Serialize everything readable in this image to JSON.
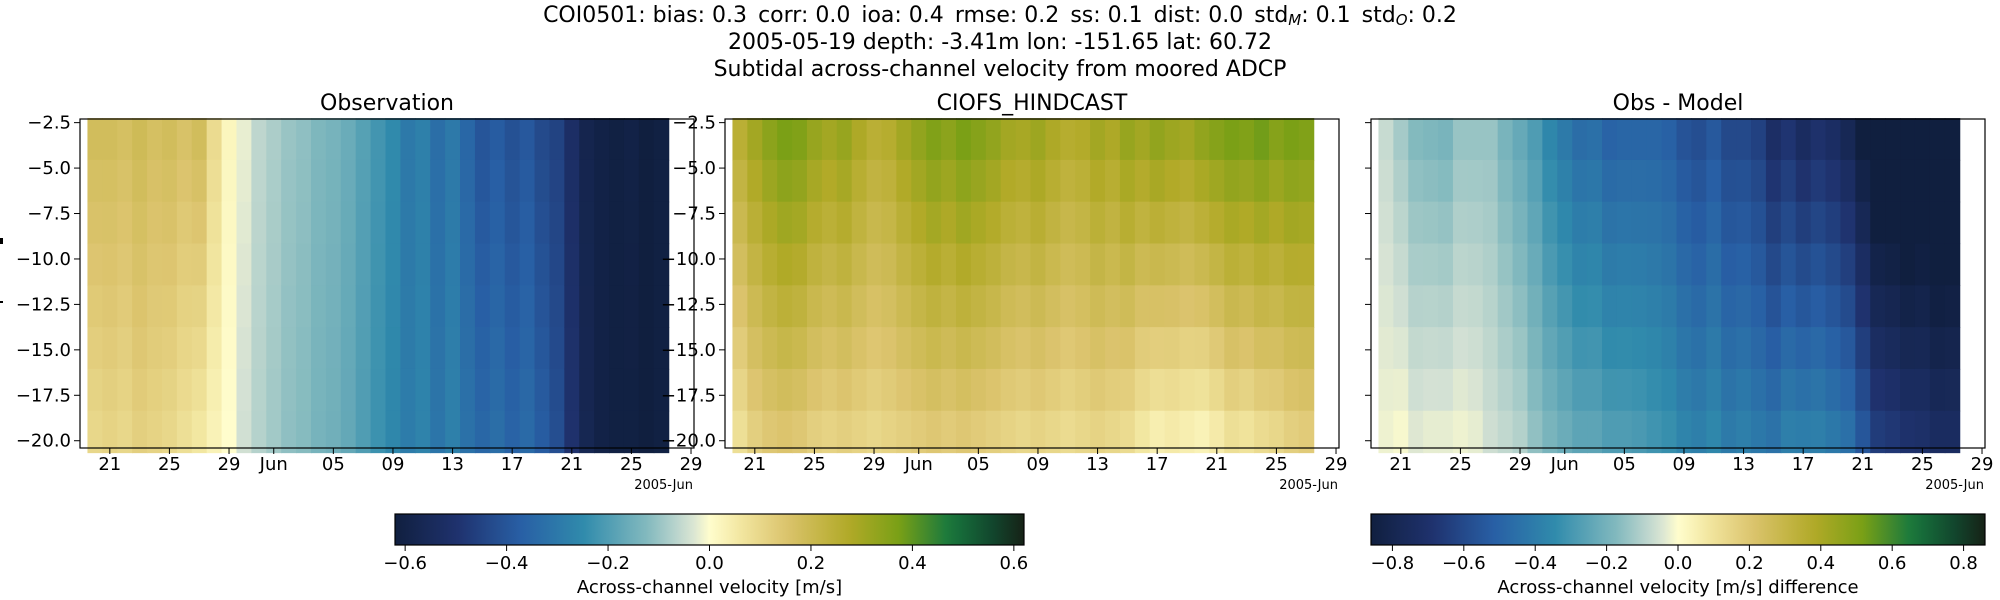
{
  "figure": {
    "station": "COI0501",
    "stats": [
      {
        "label": "bias",
        "sub": "",
        "value": "0.3"
      },
      {
        "label": "corr",
        "sub": "",
        "value": "0.0"
      },
      {
        "label": "ioa",
        "sub": "",
        "value": "0.4"
      },
      {
        "label": "rmse",
        "sub": "",
        "value": "0.2"
      },
      {
        "label": "ss",
        "sub": "",
        "value": "0.1"
      },
      {
        "label": "dist",
        "sub": "",
        "value": "0.0"
      },
      {
        "label": "std",
        "sub": "M",
        "value": "0.1"
      },
      {
        "label": "std",
        "sub": "O",
        "value": "0.2"
      }
    ],
    "subtitle": "2005-05-19 depth: -3.41m lon: -151.65 lat: 60.72",
    "description": "Subtidal across-channel velocity from moored ADCP"
  },
  "chart_data": [
    {
      "type": "heatmap",
      "title": "Observation",
      "colormap": "delta (diverging: navy-blue-teal-white-yellow-olive-green-black)",
      "x": [
        "2005-05-20",
        "2005-05-21",
        "2005-05-22",
        "2005-05-23",
        "2005-05-24",
        "2005-05-25",
        "2005-05-26",
        "2005-05-27",
        "2005-05-28",
        "2005-05-29",
        "2005-05-30",
        "2005-05-31",
        "2005-06-01",
        "2005-06-02",
        "2005-06-03",
        "2005-06-04",
        "2005-06-05",
        "2005-06-06",
        "2005-06-07",
        "2005-06-08",
        "2005-06-09",
        "2005-06-10",
        "2005-06-11",
        "2005-06-12",
        "2005-06-13",
        "2005-06-14",
        "2005-06-15",
        "2005-06-16",
        "2005-06-17",
        "2005-06-18",
        "2005-06-19",
        "2005-06-20",
        "2005-06-21",
        "2005-06-22",
        "2005-06-23",
        "2005-06-24",
        "2005-06-25",
        "2005-06-26",
        "2005-06-27"
      ],
      "y": [
        -3.4,
        -5.7,
        -8.0,
        -10.3,
        -12.6,
        -14.9,
        -17.2,
        -19.5
      ],
      "surface_profile": [
        0.18,
        0.18,
        0.17,
        0.19,
        0.17,
        0.18,
        0.16,
        0.18,
        0.09,
        0.02,
        -0.02,
        -0.06,
        -0.08,
        -0.1,
        -0.11,
        -0.13,
        -0.14,
        -0.16,
        -0.19,
        -0.22,
        -0.25,
        -0.3,
        -0.28,
        -0.33,
        -0.3,
        -0.35,
        -0.4,
        -0.38,
        -0.41,
        -0.39,
        -0.43,
        -0.45,
        -0.52,
        -0.58,
        -0.6,
        -0.61,
        -0.6,
        -0.62,
        -0.61
      ],
      "bottom_profile": [
        0.1,
        0.11,
        0.1,
        0.12,
        0.11,
        0.1,
        0.08,
        0.06,
        0.03,
        0.0,
        -0.04,
        -0.07,
        -0.09,
        -0.11,
        -0.12,
        -0.14,
        -0.15,
        -0.17,
        -0.2,
        -0.23,
        -0.26,
        -0.29,
        -0.27,
        -0.31,
        -0.28,
        -0.32,
        -0.35,
        -0.33,
        -0.36,
        -0.34,
        -0.38,
        -0.42,
        -0.5,
        -0.57,
        -0.6,
        -0.61,
        -0.61,
        -0.62,
        -0.61
      ],
      "xtick_labels": [
        "21",
        "25",
        "29",
        "Jun",
        "05",
        "09",
        "13",
        "17",
        "21",
        "25",
        "29"
      ],
      "xaxis_offset_label": "2005-Jun",
      "ytick_labels": [
        "−2.5",
        "−5.0",
        "−7.5",
        "−10.0",
        "−12.5",
        "−15.0",
        "−17.5",
        "−20.0"
      ],
      "ylim": [
        -20.4,
        -2.3
      ]
    },
    {
      "type": "heatmap",
      "title": "CIOFS_HINDCAST",
      "colormap": "delta (diverging: navy-blue-teal-white-yellow-olive-green-black)",
      "x": [
        "2005-05-20",
        "2005-05-21",
        "2005-05-22",
        "2005-05-23",
        "2005-05-24",
        "2005-05-25",
        "2005-05-26",
        "2005-05-27",
        "2005-05-28",
        "2005-05-29",
        "2005-05-30",
        "2005-05-31",
        "2005-06-01",
        "2005-06-02",
        "2005-06-03",
        "2005-06-04",
        "2005-06-05",
        "2005-06-06",
        "2005-06-07",
        "2005-06-08",
        "2005-06-09",
        "2005-06-10",
        "2005-06-11",
        "2005-06-12",
        "2005-06-13",
        "2005-06-14",
        "2005-06-15",
        "2005-06-16",
        "2005-06-17",
        "2005-06-18",
        "2005-06-19",
        "2005-06-20",
        "2005-06-21",
        "2005-06-22",
        "2005-06-23",
        "2005-06-24",
        "2005-06-25",
        "2005-06-26",
        "2005-06-27"
      ],
      "y": [
        -3.4,
        -5.7,
        -8.0,
        -10.3,
        -12.6,
        -14.9,
        -17.2,
        -19.5
      ],
      "surface_profile": [
        0.25,
        0.3,
        0.34,
        0.37,
        0.36,
        0.32,
        0.3,
        0.32,
        0.28,
        0.25,
        0.26,
        0.3,
        0.33,
        0.36,
        0.34,
        0.37,
        0.35,
        0.33,
        0.3,
        0.29,
        0.31,
        0.28,
        0.26,
        0.27,
        0.3,
        0.28,
        0.32,
        0.3,
        0.33,
        0.31,
        0.3,
        0.33,
        0.35,
        0.37,
        0.36,
        0.38,
        0.35,
        0.37,
        0.36
      ],
      "bottom_profile": [
        0.08,
        0.12,
        0.14,
        0.15,
        0.14,
        0.12,
        0.11,
        0.12,
        0.11,
        0.1,
        0.11,
        0.12,
        0.13,
        0.14,
        0.13,
        0.14,
        0.13,
        0.12,
        0.11,
        0.1,
        0.11,
        0.1,
        0.09,
        0.1,
        0.11,
        0.1,
        0.09,
        0.06,
        0.04,
        0.05,
        0.04,
        0.03,
        0.05,
        0.08,
        0.07,
        0.09,
        0.1,
        0.12,
        0.13
      ],
      "xtick_labels": [
        "21",
        "25",
        "29",
        "Jun",
        "05",
        "09",
        "13",
        "17",
        "21",
        "25",
        "29"
      ],
      "xaxis_offset_label": "2005-Jun",
      "ytick_labels": [
        "−2.5",
        "−5.0",
        "−7.5",
        "−10.0",
        "−12.5",
        "−15.0",
        "−17.5",
        "−20.0"
      ],
      "ylim": [
        -20.4,
        -2.3
      ]
    },
    {
      "type": "heatmap",
      "title": "Obs - Model",
      "colormap": "delta (diverging: navy-blue-teal-white-yellow-olive-green-black)",
      "x": [
        "2005-05-20",
        "2005-05-21",
        "2005-05-22",
        "2005-05-23",
        "2005-05-24",
        "2005-05-25",
        "2005-05-26",
        "2005-05-27",
        "2005-05-28",
        "2005-05-29",
        "2005-05-30",
        "2005-05-31",
        "2005-06-01",
        "2005-06-02",
        "2005-06-03",
        "2005-06-04",
        "2005-06-05",
        "2005-06-06",
        "2005-06-07",
        "2005-06-08",
        "2005-06-09",
        "2005-06-10",
        "2005-06-11",
        "2005-06-12",
        "2005-06-13",
        "2005-06-14",
        "2005-06-15",
        "2005-06-16",
        "2005-06-17",
        "2005-06-18",
        "2005-06-19",
        "2005-06-20",
        "2005-06-21",
        "2005-06-22",
        "2005-06-23",
        "2005-06-24",
        "2005-06-25",
        "2005-06-26",
        "2005-06-27"
      ],
      "y": [
        -3.4,
        -5.7,
        -8.0,
        -10.3,
        -12.6,
        -14.9,
        -17.2,
        -19.5
      ],
      "surface_profile": [
        -0.07,
        -0.12,
        -0.17,
        -0.18,
        -0.19,
        -0.14,
        -0.14,
        -0.14,
        -0.19,
        -0.23,
        -0.28,
        -0.36,
        -0.41,
        -0.46,
        -0.45,
        -0.5,
        -0.49,
        -0.49,
        -0.49,
        -0.51,
        -0.56,
        -0.58,
        -0.54,
        -0.6,
        -0.6,
        -0.63,
        -0.72,
        -0.68,
        -0.74,
        -0.7,
        -0.73,
        -0.78,
        -0.87,
        -0.95,
        -0.96,
        -0.99,
        -0.95,
        -0.99,
        -0.97
      ],
      "bottom_profile": [
        -0.02,
        -0.01,
        -0.04,
        -0.03,
        -0.03,
        -0.02,
        -0.03,
        -0.06,
        -0.08,
        -0.1,
        -0.15,
        -0.19,
        -0.22,
        -0.25,
        -0.25,
        -0.28,
        -0.28,
        -0.29,
        -0.31,
        -0.33,
        -0.37,
        -0.39,
        -0.36,
        -0.41,
        -0.39,
        -0.42,
        -0.44,
        -0.39,
        -0.4,
        -0.39,
        -0.42,
        -0.45,
        -0.55,
        -0.65,
        -0.67,
        -0.7,
        -0.71,
        -0.74,
        -0.74
      ],
      "xtick_labels": [
        "21",
        "25",
        "29",
        "Jun",
        "05",
        "09",
        "13",
        "17",
        "21",
        "25",
        "29"
      ],
      "xaxis_offset_label": "2005-Jun",
      "ytick_labels": [
        "",
        "",
        "",
        "",
        "",
        "",
        "",
        ""
      ],
      "ylim": [
        -20.4,
        -2.3
      ]
    }
  ],
  "colorbars": [
    {
      "label": "Across-channel velocity [m/s]",
      "vmin": -0.62,
      "vmax": 0.62,
      "ticks": [
        -0.6,
        -0.4,
        -0.2,
        0.0,
        0.2,
        0.4,
        0.6
      ],
      "tick_labels": [
        "−0.6",
        "−0.4",
        "−0.2",
        "0.0",
        "0.2",
        "0.4",
        "0.6"
      ]
    },
    {
      "label": "Across-channel velocity [m/s] difference",
      "vmin": -0.86,
      "vmax": 0.86,
      "ticks": [
        -0.8,
        -0.6,
        -0.4,
        -0.2,
        0.0,
        0.2,
        0.4,
        0.6,
        0.8
      ],
      "tick_labels": [
        "−0.8",
        "−0.6",
        "−0.4",
        "−0.2",
        "0.0",
        "0.2",
        "0.4",
        "0.6",
        "0.8"
      ]
    }
  ]
}
